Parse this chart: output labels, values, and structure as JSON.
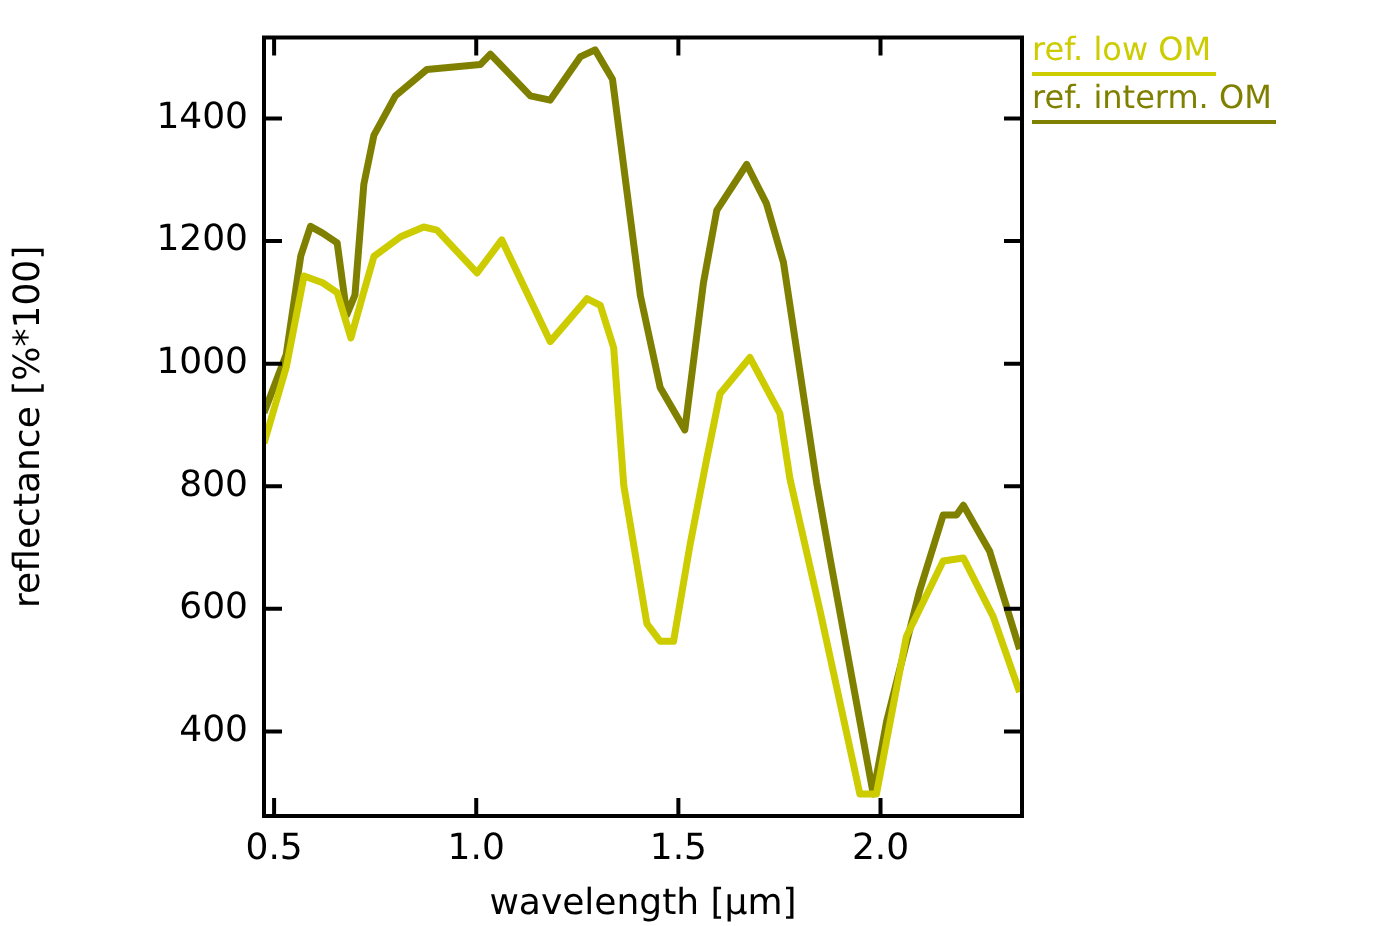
{
  "chart_data": {
    "type": "line",
    "xlabel": "wavelength [μm]",
    "ylabel": "reflectance [%*100]",
    "xlim": [
      0.475,
      2.35
    ],
    "ylim": [
      262,
      1532
    ],
    "xticks": [
      {
        "value": 0.5,
        "label": "0.5"
      },
      {
        "value": 1,
        "label": "1.0"
      },
      {
        "value": 1.5,
        "label": "1.5"
      },
      {
        "value": 2,
        "label": "2.0"
      }
    ],
    "yticks": [
      400,
      600,
      800,
      1000,
      1200,
      1400
    ],
    "legend": "top right",
    "marker": "none",
    "line_style": "solid",
    "series": [
      {
        "name": "ref. low OM",
        "color": "#cccc00",
        "x": [
          0.475,
          0.53,
          0.574,
          0.62,
          0.656,
          0.69,
          0.717,
          0.747,
          0.813,
          0.87,
          0.903,
          1.002,
          1.063,
          1.183,
          1.274,
          1.307,
          1.34,
          1.365,
          1.422,
          1.455,
          1.488,
          1.529,
          1.57,
          1.603,
          1.677,
          1.751,
          1.776,
          1.85,
          1.949,
          1.99,
          2.064,
          2.155,
          2.205,
          2.279,
          2.344
        ],
        "values": [
          870,
          994,
          1143,
          1132,
          1116,
          1042,
          1106,
          1175,
          1207,
          1223,
          1218,
          1148,
          1202,
          1036,
          1106,
          1095,
          1026,
          801,
          576,
          547,
          547,
          705,
          844,
          951,
          1010,
          919,
          812,
          598,
          298,
          298,
          555,
          678,
          683,
          587,
          464
        ]
      },
      {
        "name": "ref. interm. OM",
        "color": "#808000",
        "x": [
          0.475,
          0.53,
          0.566,
          0.59,
          0.62,
          0.656,
          0.68,
          0.7,
          0.722,
          0.747,
          0.8,
          0.878,
          1.01,
          1.035,
          1.134,
          1.183,
          1.258,
          1.294,
          1.337,
          1.406,
          1.455,
          1.516,
          1.562,
          1.595,
          1.669,
          1.718,
          1.76,
          1.842,
          1.875,
          1.982,
          2.015,
          2.097,
          2.155,
          2.188,
          2.205,
          2.27,
          2.344
        ],
        "values": [
          920,
          1015,
          1176,
          1224,
          1213,
          1197,
          1080,
          1112,
          1293,
          1373,
          1437,
          1480,
          1488,
          1505,
          1437,
          1430,
          1501,
          1512,
          1464,
          1111,
          961,
          892,
          1132,
          1250,
          1325,
          1261,
          1165,
          806,
          683,
          298,
          416,
          630,
          753,
          753,
          769,
          694,
          534
        ]
      }
    ]
  }
}
